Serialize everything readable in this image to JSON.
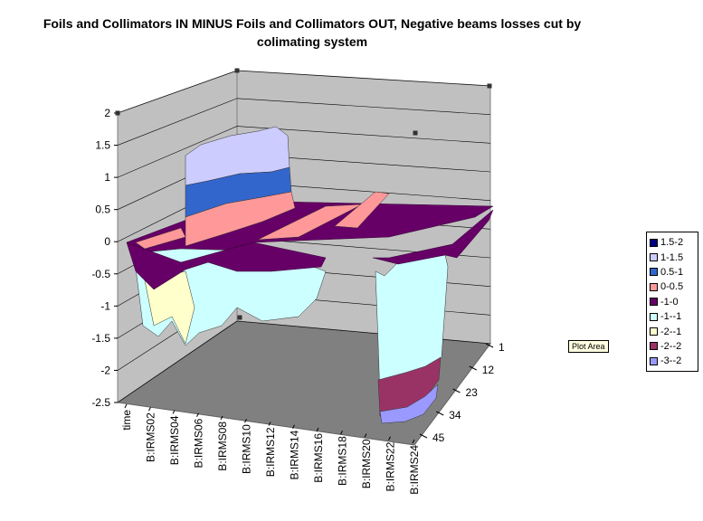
{
  "chart_data": {
    "type": "surface",
    "title": "Foils and Collimators IN MINUS Foils and Collimators OUT, Negative beams losses cut by colimating system",
    "title_lines": [
      "Foils and Collimators IN MINUS Foils and Collimators OUT, Negative beams losses cut by",
      "colimating system"
    ],
    "zlim": [
      -2.5,
      2
    ],
    "z_ticks": [
      "2",
      "1.5",
      "1",
      "0.5",
      "0",
      "-0.5",
      "-1",
      "-1.5",
      "-2",
      "-2.5"
    ],
    "x_categories": [
      "time",
      "B:IRMS02",
      "B:IRMS04",
      "B:IRMS06",
      "B:IRMS08",
      "B:IRMS10",
      "B:IRMS12",
      "B:IRMS14",
      "B:IRMS16",
      "B:IRMS18",
      "B:IRMS20",
      "B:IRMS22",
      "B:IRMS24"
    ],
    "y_ticks": [
      "1",
      "12",
      "23",
      "34",
      "45"
    ],
    "legend": [
      {
        "label": "1.5-2",
        "color": "#000080"
      },
      {
        "label": "1-1.5",
        "color": "#ccccff"
      },
      {
        "label": "0.5-1",
        "color": "#3366cc"
      },
      {
        "label": "0-0.5",
        "color": "#ff9999"
      },
      {
        "label": "-1-0",
        "color": "#660066"
      },
      {
        "label": "-1--1",
        "color": "#ccffff"
      },
      {
        "label": "-2--1",
        "color": "#ffffcc"
      },
      {
        "label": "-2--2",
        "color": "#993366"
      },
      {
        "label": "-3--2",
        "color": "#9999ff"
      }
    ],
    "features": [
      {
        "sensor": "B:IRMS06",
        "peak": 1.7,
        "band_colors": [
          "#ccccff",
          "#3366cc",
          "#ff9999"
        ]
      },
      {
        "sensor": "B:IRMS22",
        "trough": -2.4,
        "band_colors": [
          "#ccffff",
          "#993366",
          "#9999ff"
        ]
      }
    ],
    "tooltip": "Plot Area"
  }
}
